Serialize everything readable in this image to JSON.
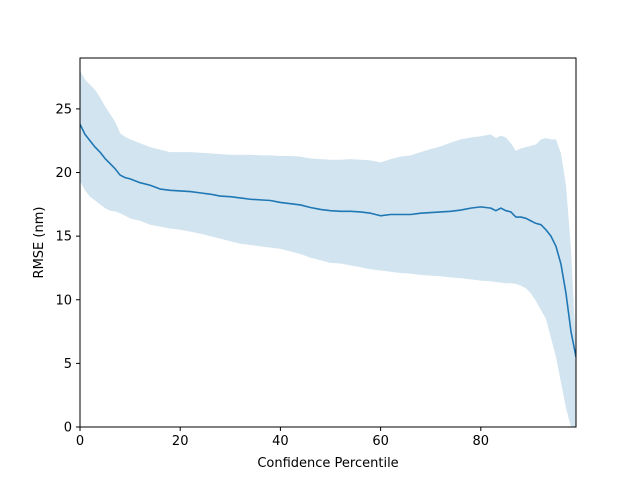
{
  "chart_data": {
    "type": "line",
    "title": "",
    "xlabel": "Confidence Percentile",
    "ylabel": "RMSE (nm)",
    "xlim": [
      0,
      99
    ],
    "ylim": [
      0,
      29
    ],
    "xticks": [
      0,
      20,
      40,
      60,
      80
    ],
    "yticks": [
      0,
      5,
      10,
      15,
      20,
      25
    ],
    "grid": false,
    "colors": {
      "line": "#1f77b4",
      "band": "#1f77b4"
    },
    "x": [
      0,
      1,
      2,
      3,
      4,
      5,
      6,
      7,
      8,
      9,
      10,
      12,
      14,
      16,
      18,
      20,
      22,
      24,
      26,
      28,
      30,
      32,
      34,
      36,
      38,
      40,
      42,
      44,
      46,
      48,
      50,
      52,
      54,
      56,
      58,
      60,
      62,
      64,
      66,
      68,
      70,
      72,
      74,
      76,
      78,
      80,
      82,
      83,
      84,
      85,
      86,
      87,
      88,
      89,
      90,
      91,
      92,
      93,
      94,
      95,
      96,
      97,
      98,
      99
    ],
    "series": [
      {
        "values": [
          23.8,
          23.0,
          22.5,
          22.0,
          21.6,
          21.1,
          20.7,
          20.3,
          19.8,
          19.6,
          19.5,
          19.2,
          19.0,
          18.7,
          18.6,
          18.55,
          18.5,
          18.4,
          18.3,
          18.15,
          18.1,
          18.0,
          17.9,
          17.85,
          17.8,
          17.65,
          17.55,
          17.45,
          17.25,
          17.1,
          17.0,
          16.95,
          16.95,
          16.9,
          16.8,
          16.6,
          16.7,
          16.7,
          16.7,
          16.8,
          16.85,
          16.9,
          16.95,
          17.05,
          17.2,
          17.3,
          17.2,
          17.0,
          17.2,
          17.0,
          16.9,
          16.5,
          16.5,
          16.4,
          16.2,
          16.0,
          15.9,
          15.5,
          15.0,
          14.2,
          12.8,
          10.5,
          7.5,
          5.5
        ]
      }
    ],
    "band": {
      "lower": [
        19.3,
        18.6,
        18.1,
        17.8,
        17.5,
        17.2,
        17.0,
        16.95,
        16.8,
        16.6,
        16.4,
        16.2,
        15.9,
        15.75,
        15.6,
        15.5,
        15.35,
        15.2,
        15.0,
        14.8,
        14.6,
        14.4,
        14.3,
        14.2,
        14.1,
        14.0,
        13.8,
        13.6,
        13.3,
        13.1,
        12.9,
        12.85,
        12.7,
        12.55,
        12.4,
        12.3,
        12.2,
        12.1,
        12.05,
        11.95,
        11.9,
        11.85,
        11.75,
        11.7,
        11.6,
        11.5,
        11.45,
        11.4,
        11.35,
        11.3,
        11.3,
        11.25,
        11.1,
        10.9,
        10.5,
        9.9,
        9.2,
        8.5,
        7.0,
        5.5,
        3.5,
        1.5,
        0.0,
        0.0
      ],
      "upper": [
        28.0,
        27.3,
        26.9,
        26.5,
        25.9,
        25.2,
        24.6,
        24.0,
        23.1,
        22.8,
        22.6,
        22.3,
        22.0,
        21.8,
        21.6,
        21.6,
        21.6,
        21.55,
        21.5,
        21.45,
        21.4,
        21.4,
        21.4,
        21.35,
        21.35,
        21.3,
        21.3,
        21.25,
        21.1,
        21.05,
        21.0,
        21.0,
        21.05,
        21.0,
        20.95,
        20.8,
        21.05,
        21.25,
        21.35,
        21.6,
        21.85,
        22.05,
        22.35,
        22.6,
        22.75,
        22.85,
        23.0,
        22.7,
        22.9,
        22.75,
        22.3,
        21.7,
        21.9,
        22.0,
        22.1,
        22.2,
        22.6,
        22.7,
        22.6,
        22.6,
        21.5,
        19.0,
        14.0,
        6.0
      ]
    }
  }
}
